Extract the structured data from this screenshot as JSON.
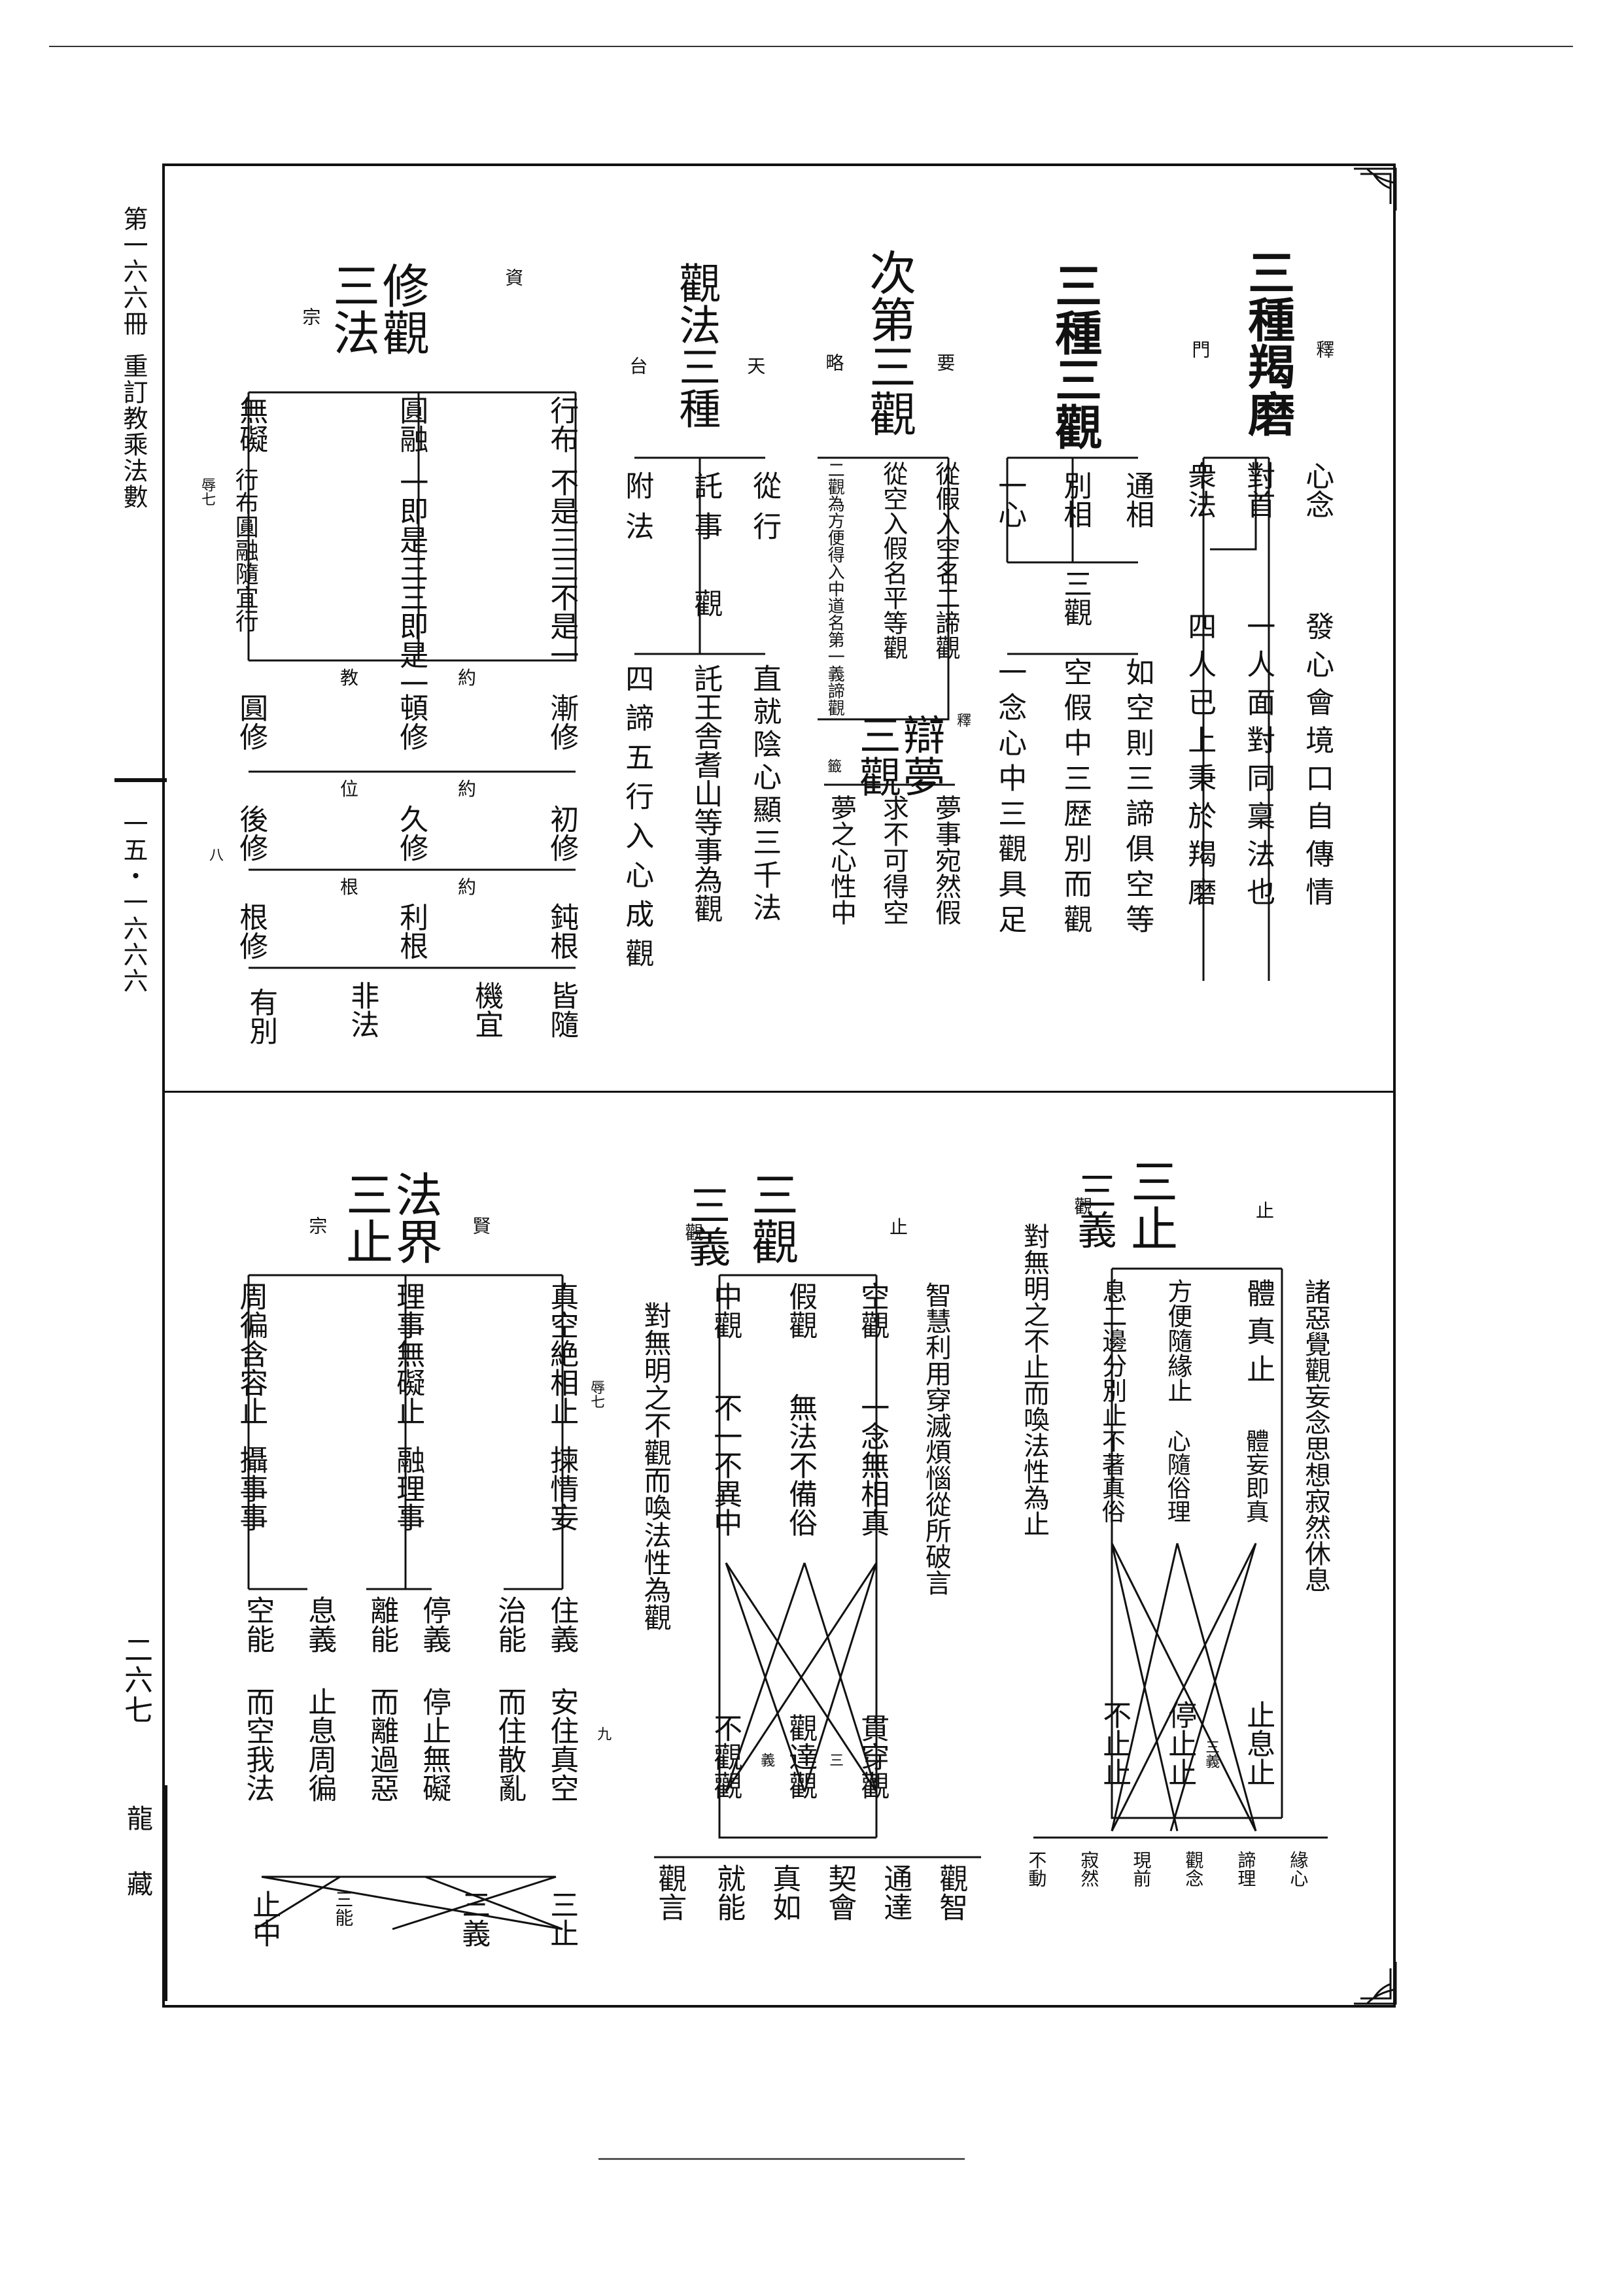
{
  "margin_left": {
    "volume": "第一六六冊",
    "book_title": "重訂教乘法數",
    "page_code": "一五・一六六六",
    "leaf_number": "二六七",
    "series": "龍藏"
  },
  "top": {
    "sec1": {
      "title": "三種羯磨",
      "tag": "釋",
      "tag2": "門",
      "col1": "心念",
      "col1_text": "發心會境口自傳情",
      "col2": "對首",
      "col2_text": "一人面對同稟法也",
      "col3": "衆法",
      "col3_text": "四人已上秉於羯磨"
    },
    "sec2": {
      "title": "三種三觀",
      "c1": "通相",
      "c1_text": "如空則三諦俱空等",
      "c2": "別相",
      "c2_text": "空假中三歴別而觀",
      "c3": "一心",
      "c3_text": "一念心中三觀具足",
      "node": "三觀"
    },
    "sec3": {
      "title": "次第三觀",
      "tag": "要",
      "tag2": "略",
      "c1": "從假入空名二諦觀",
      "c2": "從空入假名平等觀",
      "c3": "二觀為方便得入中道名第一義諦觀"
    },
    "sec4": {
      "title": "辯夢三觀",
      "tag": "釋",
      "tag2": "籤",
      "c1": "夢事宛然假",
      "c2": "求不可得空",
      "c3": "夢之心性中"
    },
    "sec5": {
      "title": "觀法三種",
      "tag": "天",
      "tag2": "台",
      "c1": "從行",
      "c1_text": "直就陰心顯三千法",
      "c2": "託事",
      "c2_text": "託王舎耆山等事為觀",
      "c3": "附法",
      "c3_text": "四諦五行入心成觀",
      "node": "觀"
    },
    "sec6": {
      "title": "修觀三法",
      "tag": "資",
      "tag2": "宗",
      "c1": "行布",
      "c1_text": "不是三三不是一",
      "c2": "圓融",
      "c2_text": "一即是三三即是一",
      "c3": "無礙",
      "c3_text": "行布圓融隨宜行",
      "note": "辱七",
      "r1_label": "約",
      "r1_sub": "教",
      "r1a": "漸修",
      "r1b": "頓修",
      "r1c": "圓修",
      "r2_label": "約",
      "r2_sub": "位",
      "r2a": "初修",
      "r2b": "久修",
      "r2c": "後修",
      "r3_label": "約",
      "r3_sub": "根",
      "r3a": "鈍根",
      "r3b": "利根",
      "r3c": "根修",
      "r4a": "皆隨",
      "r4b": "機宜",
      "r4c": "非法",
      "r4d": "有別",
      "mark": "八"
    }
  },
  "bottom": {
    "sec1": {
      "title": "三止",
      "tag": "止",
      "lead": "諸惡覺觀妄念思想寂然休息",
      "c1": "體真止",
      "c1_text": "體妄即真",
      "c2": "方便隨緣止",
      "c2_text": "心隨俗理",
      "c3": "息二邊分別止",
      "c3_text": "不著真俗",
      "r1": "止息止",
      "r2": "停止止",
      "r3": "不止止",
      "sub_tag": "三義",
      "title2": "三義",
      "tag2": "觀",
      "lead2": "對無明之不止而喚法性為止",
      "list": [
        "緣心",
        "諦理",
        "觀念",
        "現前",
        "寂然",
        "不動"
      ]
    },
    "sec2": {
      "title": "三觀",
      "tag": "止",
      "lead": "智慧利用穿滅煩惱從所破言",
      "c1": "空觀",
      "c1_text": "一念無相真",
      "c2": "假觀",
      "c2_text": "無法不備俗",
      "c3": "中觀",
      "c3_text": "不一不異中",
      "r1": "貫穿觀",
      "r2": "觀達觀",
      "r3": "不觀觀",
      "title2": "三義",
      "tag2": "觀",
      "lead2": "對無明之不觀而喚法性為觀",
      "list": [
        "觀智",
        "通達",
        "契會",
        "真如",
        "就能",
        "觀言"
      ],
      "sub1": "三",
      "sub2": "義"
    },
    "sec3": {
      "title": "法界三止",
      "tag": "賢",
      "tag2": "宗",
      "c1": "真空絶相止",
      "c1_text": "揀情妄",
      "c2": "理事無礙止",
      "c2_text": "融理事",
      "c3": "周徧含容止",
      "c3_text": "攝事事",
      "note": "辱七",
      "g1a": "住義",
      "g1a_text": "安住真空",
      "g1b": "治能",
      "g1b_text": "而住散亂",
      "g2a": "停義",
      "g2a_text": "停止無礙",
      "g2b": "離能",
      "g2b_text": "而離過惡",
      "g3a": "息義",
      "g3a_text": "止息周徧",
      "g3b": "空能",
      "g3b_text": "而空我法",
      "e1": "三止",
      "e2": "三義",
      "e3": "三能",
      "e4": "止中",
      "mark": "九"
    }
  }
}
